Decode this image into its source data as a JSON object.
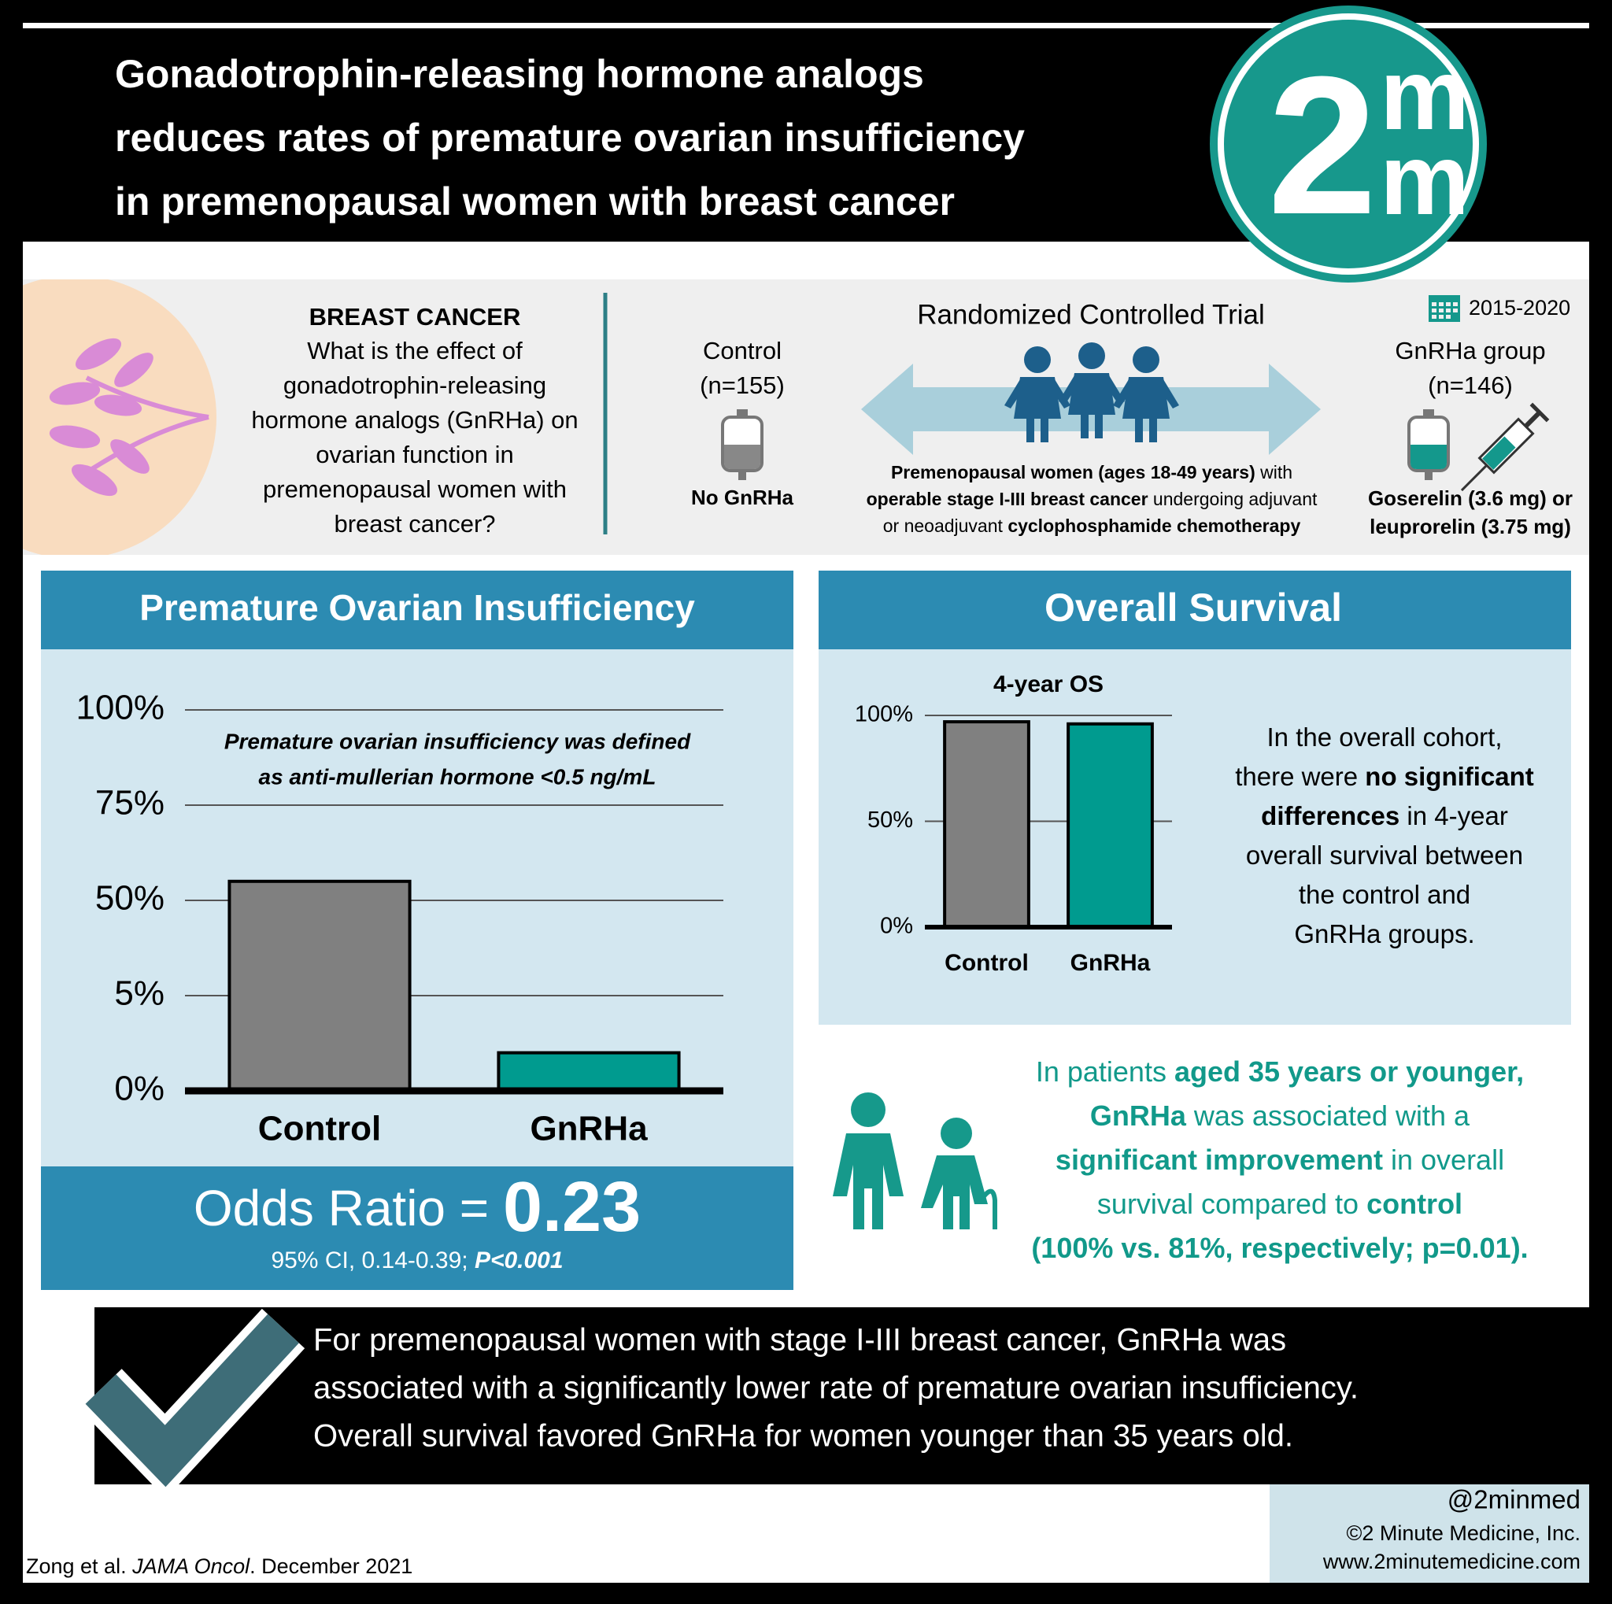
{
  "header": {
    "title_lines": [
      "Gonadotrophin-releasing hormone analogs",
      "reduces rates of premature ovarian insufficiency",
      "in premenopausal women with breast cancer"
    ],
    "logo": {
      "digit": "2",
      "top": "m",
      "bottom": "m",
      "mark": "™"
    }
  },
  "question": {
    "heading": "BREAST CANCER",
    "lines": [
      "What is the effect of",
      "gonadotrophin-releasing",
      "hormone analogs (GnRHa) on",
      "ovarian function in",
      "premenopausal women with",
      "breast cancer?"
    ]
  },
  "trial": {
    "title": "Randomized Controlled Trial",
    "dates": "2015-2020",
    "control": {
      "lines": [
        "Control",
        "(n=155)"
      ],
      "label": "No GnRHa"
    },
    "treatment": {
      "lines": [
        "GnRHa group",
        "(n=146)"
      ],
      "drug_lines": [
        "Goserelin (3.6 mg) or",
        "leuprorelin (3.75 mg)"
      ]
    },
    "population_lines": [
      [
        {
          "text": "Premenopausal women (ages 18-49 years)",
          "bold": true
        },
        {
          "text": " with"
        }
      ],
      [
        {
          "text": "operable stage I-III breast cancer",
          "bold": true
        },
        {
          "text": " undergoing adjuvant"
        }
      ],
      [
        {
          "text": "or neoadjuvant "
        },
        {
          "text": "cyclophosphamide chemotherapy",
          "bold": true
        }
      ]
    ]
  },
  "chart_data": [
    {
      "type": "bar",
      "title": "Premature Ovarian Insufficiency",
      "categories": [
        "Control",
        "GnRHa"
      ],
      "values": [
        55,
        2
      ],
      "colors": [
        "#808080",
        "#009b8f"
      ],
      "ylim": [
        0,
        100
      ],
      "scale": "piecewise",
      "grid": true,
      "yticks": [
        {
          "value": 0,
          "label": "0%"
        },
        {
          "value": 5,
          "label": "5%"
        },
        {
          "value": 50,
          "label": "50%"
        },
        {
          "value": 75,
          "label": "75%"
        },
        {
          "value": 100,
          "label": "100%"
        }
      ]
    },
    {
      "type": "bar",
      "title": "4-year OS",
      "categories": [
        "Control",
        "GnRHa"
      ],
      "values": [
        97,
        96
      ],
      "colors": [
        "#808080",
        "#009b8f"
      ],
      "ylim": [
        0,
        100
      ],
      "scale": "linear",
      "grid": true,
      "yticks": [
        {
          "value": 0,
          "label": "0%"
        },
        {
          "value": 50,
          "label": "50%"
        },
        {
          "value": 100,
          "label": "100%"
        }
      ]
    }
  ],
  "poi_panel": {
    "note_lines": [
      "Premature ovarian insufficiency was defined",
      "as anti-mullerian hormone <0.5 ng/mL"
    ],
    "odds_ratio": {
      "label": "Odds Ratio = ",
      "value": 0.23,
      "ci": [
        {
          "text": "95% CI, 0.14-0.39; "
        },
        {
          "text": "P<0.001",
          "bold": true
        }
      ]
    }
  },
  "os_panel": {
    "heading": "Overall Survival",
    "summary_lines": [
      [
        {
          "text": "In the overall cohort,"
        }
      ],
      [
        {
          "text": "there were "
        },
        {
          "text": "no significant",
          "bold": true
        }
      ],
      [
        {
          "text": "differences",
          "bold": true
        },
        {
          "text": " in 4-year"
        }
      ],
      [
        {
          "text": "overall survival between"
        }
      ],
      [
        {
          "text": "the control and"
        }
      ],
      [
        {
          "text": "GnRHa groups."
        }
      ]
    ]
  },
  "subgroup": {
    "lines": [
      [
        {
          "text": "In patients "
        },
        {
          "text": "aged 35 years or younger,",
          "bold": true
        }
      ],
      [
        {
          "text": "GnRHa",
          "bold": true
        },
        {
          "text": " was associated with a"
        }
      ],
      [
        {
          "text": "significant improvement",
          "bold": true
        },
        {
          "text": " in overall"
        }
      ],
      [
        {
          "text": "survival compared to "
        },
        {
          "text": "control",
          "bold": true
        }
      ],
      [
        {
          "text": "(100% vs. 81%, respectively; p=0.01).",
          "bold": true
        }
      ]
    ]
  },
  "conclusion": {
    "lines": [
      "For premenopausal women with stage I-III breast cancer, GnRHa was",
      "associated with a significantly lower rate of premature ovarian insufficiency.",
      "Overall survival favored GnRHa for women younger than 35 years old."
    ]
  },
  "footer": {
    "handle": "@2minmed",
    "copyright": "©2 Minute Medicine, Inc.",
    "url": "www.2minutemedicine.com",
    "citation": [
      {
        "text": "Zong et al. "
      },
      {
        "text": "JAMA Oncol",
        "italic": true
      },
      {
        "text": ". December 2021"
      }
    ]
  }
}
